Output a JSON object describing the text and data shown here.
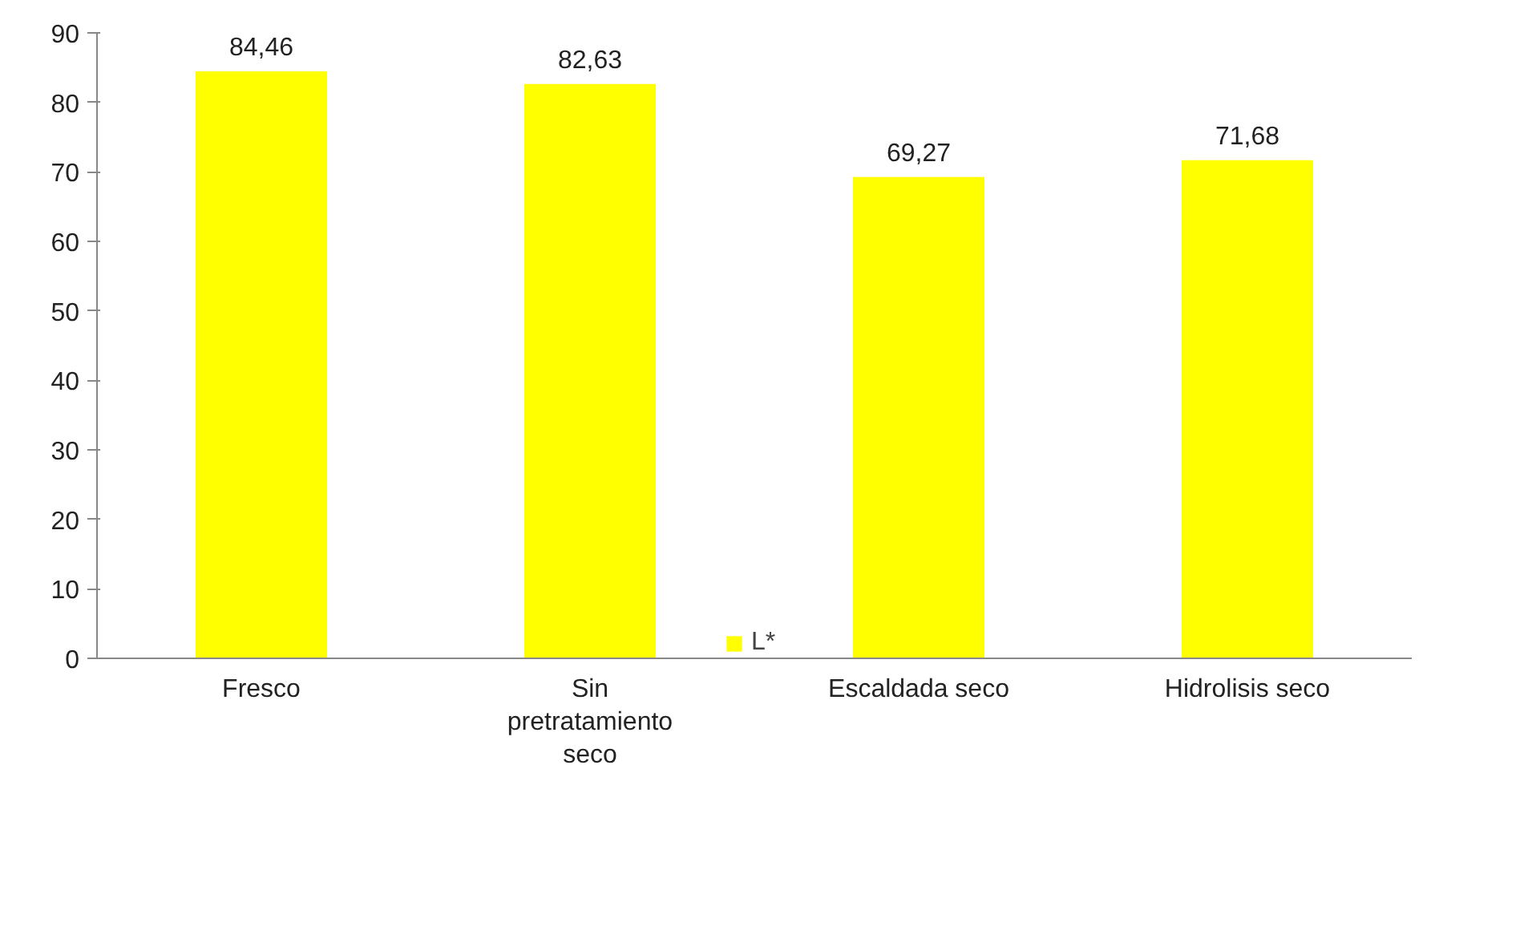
{
  "chart_data": {
    "type": "bar",
    "categories": [
      "Fresco",
      "Sin pretratamiento seco",
      "Escaldada seco",
      "Hidrolisis seco"
    ],
    "series": [
      {
        "name": "L*",
        "color": "#ffff00",
        "values": [
          84.46,
          82.63,
          69.27,
          71.68
        ],
        "value_labels": [
          "84,46",
          "82,63",
          "69,27",
          "71,68"
        ]
      }
    ],
    "ylim": [
      0,
      90
    ],
    "yticks": [
      0,
      10,
      20,
      30,
      40,
      50,
      60,
      70,
      80,
      90
    ],
    "grid": false,
    "legend": "bottom"
  }
}
